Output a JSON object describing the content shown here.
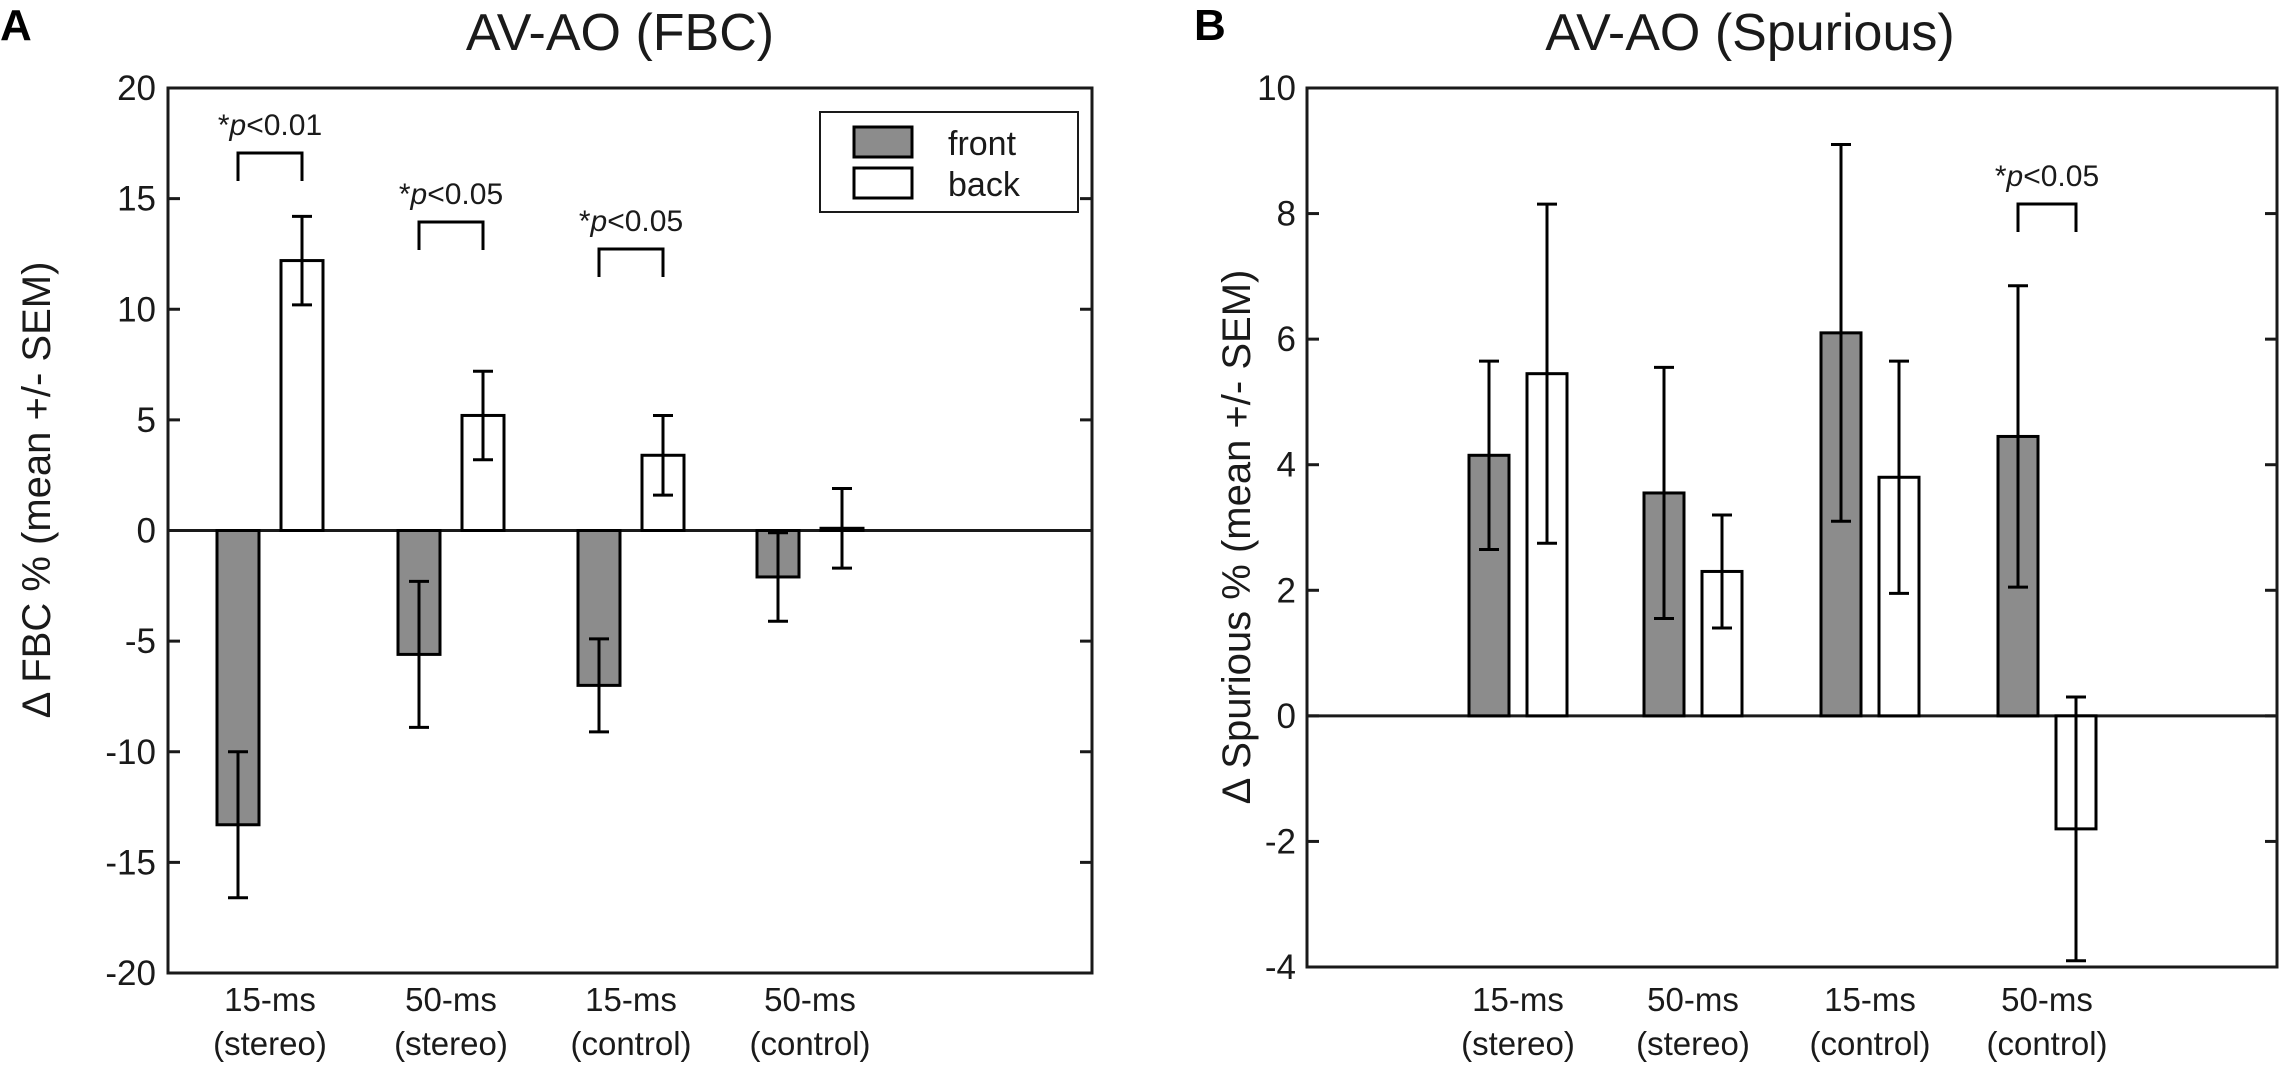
{
  "chart_data": [
    {
      "panel": "A",
      "type": "bar",
      "title": "AV-AO (FBC)",
      "ylabel": "Δ FBC % (mean +/- SEM)",
      "ylim": [
        -20,
        20
      ],
      "yticks": [
        20,
        15,
        10,
        5,
        0,
        -5,
        -10,
        -15,
        -20
      ],
      "ytick_labels": [
        "20",
        "15",
        "10",
        "5",
        "0",
        "-5",
        "-10",
        "-15",
        "-20"
      ],
      "categories": [
        [
          "15-ms",
          "(stereo)"
        ],
        [
          "50-ms",
          "(stereo)"
        ],
        [
          "15-ms",
          "(control)"
        ],
        [
          "50-ms",
          "(control)"
        ]
      ],
      "series": [
        {
          "name": "front",
          "color": "#8c8c8c",
          "values": [
            -13.3,
            -5.6,
            -7.0,
            -2.1
          ],
          "sem": [
            3.3,
            3.3,
            2.1,
            2.0
          ]
        },
        {
          "name": "back",
          "color": "#ffffff",
          "values": [
            12.2,
            5.2,
            3.4,
            0.1
          ],
          "sem": [
            2.0,
            2.0,
            1.8,
            1.8
          ]
        }
      ],
      "legend": [
        "front",
        "back"
      ],
      "legend_position": "top-right",
      "annotations": [
        {
          "category": 0,
          "star": "*",
          "p": "p",
          "rest": "<0.01"
        },
        {
          "category": 1,
          "star": "*",
          "p": "p",
          "rest": "<0.05"
        },
        {
          "category": 2,
          "star": "*",
          "p": "p",
          "rest": "<0.05"
        }
      ]
    },
    {
      "panel": "B",
      "type": "bar",
      "title": "AV-AO (Spurious)",
      "ylabel": "Δ Spurious % (mean +/- SEM)",
      "ylim": [
        -4,
        10
      ],
      "yticks": [
        10,
        8,
        6,
        4,
        2,
        0,
        -2,
        -4
      ],
      "ytick_labels": [
        "10",
        "8",
        "6",
        "4",
        "2",
        "0",
        "-2",
        "-4"
      ],
      "categories": [
        [
          "15-ms",
          "(stereo)"
        ],
        [
          "50-ms",
          "(stereo)"
        ],
        [
          "15-ms",
          "(control)"
        ],
        [
          "50-ms",
          "(control)"
        ]
      ],
      "series": [
        {
          "name": "front",
          "color": "#8c8c8c",
          "values": [
            4.15,
            3.55,
            6.1,
            4.45
          ],
          "sem": [
            1.5,
            2.0,
            3.0,
            2.4
          ]
        },
        {
          "name": "back",
          "color": "#ffffff",
          "values": [
            5.45,
            2.3,
            3.8,
            -1.8
          ],
          "sem": [
            2.7,
            0.9,
            1.85,
            2.1
          ]
        }
      ],
      "annotations": [
        {
          "category": 3,
          "star": "*",
          "p": "p",
          "rest": "<0.05"
        }
      ]
    }
  ]
}
